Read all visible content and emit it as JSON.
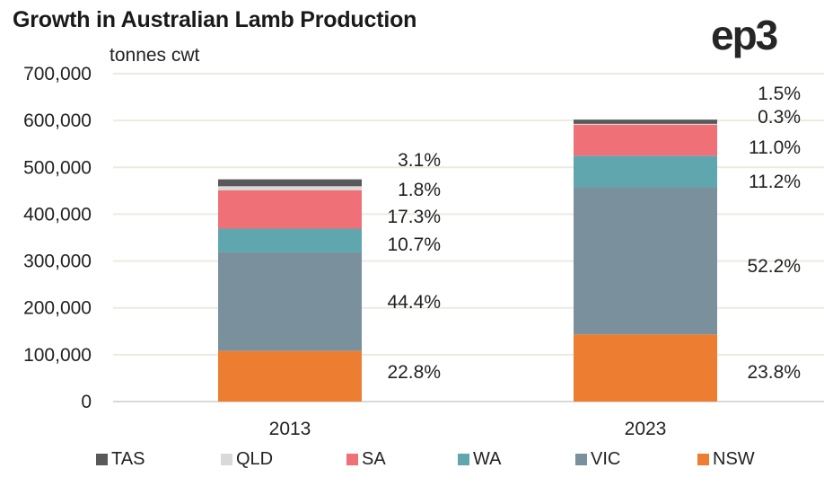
{
  "header": {
    "title": "Growth in Australian Lamb Production",
    "unit": "tonnes cwt",
    "logo": "ep3"
  },
  "chart_data": {
    "type": "bar",
    "stacked": true,
    "title": "Growth in Australian Lamb Production",
    "ylabel": "tonnes cwt",
    "xlabel": "",
    "ylim": [
      0,
      700000
    ],
    "yticks": [
      0,
      100000,
      200000,
      300000,
      400000,
      500000,
      600000,
      700000
    ],
    "ytick_labels": [
      "0",
      "100,000",
      "200,000",
      "300,000",
      "400,000",
      "500,000",
      "600,000",
      "700,000"
    ],
    "grid": true,
    "legend_position": "bottom",
    "categories": [
      "2013",
      "2023"
    ],
    "series": [
      {
        "name": "NSW",
        "color": "#ED7D31",
        "values": [
          108000,
          143300
        ],
        "labels": [
          "22.8%",
          "23.8%"
        ]
      },
      {
        "name": "VIC",
        "color": "#7A909C",
        "values": [
          210500,
          314200
        ],
        "labels": [
          "44.4%",
          "52.2%"
        ]
      },
      {
        "name": "WA",
        "color": "#5FA6AE",
        "values": [
          50700,
          67400
        ],
        "labels": [
          "10.7%",
          "11.2%"
        ]
      },
      {
        "name": "SA",
        "color": "#F07077",
        "values": [
          82000,
          66200
        ],
        "labels": [
          "17.3%",
          "11.0%"
        ]
      },
      {
        "name": "QLD",
        "color": "#D9D9D9",
        "values": [
          8500,
          1800
        ],
        "labels": [
          "1.8%",
          "0.3%"
        ]
      },
      {
        "name": "TAS",
        "color": "#595959",
        "values": [
          14700,
          9000
        ],
        "labels": [
          "3.1%",
          "1.5%"
        ]
      }
    ],
    "legend_order": [
      "TAS",
      "QLD",
      "SA",
      "WA",
      "VIC",
      "NSW"
    ]
  }
}
